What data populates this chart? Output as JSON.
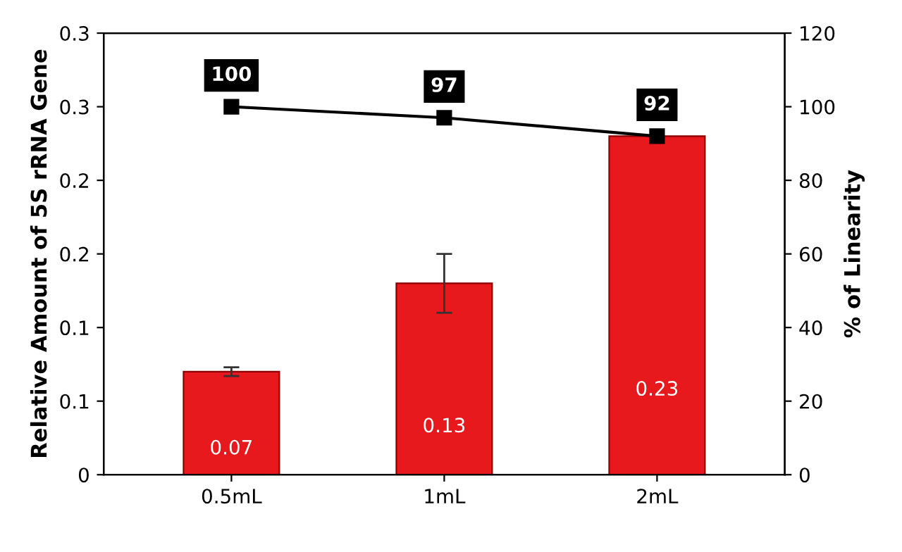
{
  "chart_data": {
    "type": "bar",
    "categories": [
      "0.5mL",
      "1mL",
      "2mL"
    ],
    "ylabel": "Relative Amount of 5S rRNA Gene",
    "y2label": "% of Linearity",
    "series": [
      {
        "color": "#e8191c",
        "values": [
          0.07,
          0.13,
          0.23
        ],
        "errors": [
          0.003,
          0.02,
          null
        ]
      },
      {
        "type": "line",
        "axis": "y2",
        "color": "#000000",
        "values": [
          100,
          97,
          92
        ]
      }
    ],
    "ylim": [
      0,
      0.3
    ],
    "yticks": [
      0,
      {
        "value": 0.05,
        "label": "0.1"
      },
      0.1,
      {
        "value": 0.15,
        "label": "0.2"
      },
      0.2,
      {
        "value": 0.25,
        "label": "0.3"
      },
      0.3
    ],
    "y2lim": [
      0,
      120
    ],
    "y2ticks": [
      0,
      20,
      40,
      60,
      80,
      100,
      120
    ],
    "marker": "square",
    "data_labels": true,
    "grid": false,
    "legend": false
  }
}
